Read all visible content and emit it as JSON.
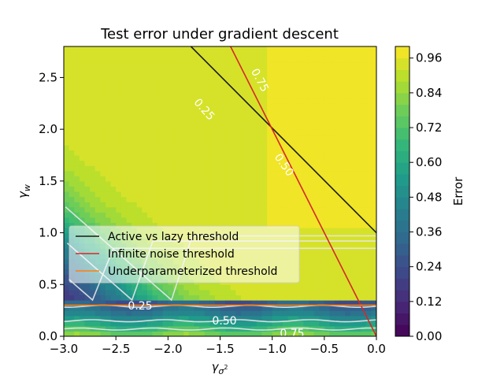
{
  "chart_data": {
    "type": "heatmap",
    "title": "Test error under gradient descent",
    "xlabel": "γ_{σ²}",
    "ylabel": "γ_w",
    "xlim": [
      -3.0,
      0.0
    ],
    "ylim": [
      0.0,
      2.8
    ],
    "x_ticks": [
      -3.0,
      -2.5,
      -2.0,
      -1.5,
      -1.0,
      -0.5,
      0.0
    ],
    "x_tick_labels": [
      "−3.0",
      "−2.5",
      "−2.0",
      "−1.5",
      "−1.0",
      "−0.5",
      "0.0"
    ],
    "y_ticks": [
      0.0,
      0.5,
      1.0,
      1.5,
      2.0,
      2.5
    ],
    "y_tick_labels": [
      "0.0",
      "0.5",
      "1.0",
      "1.5",
      "2.0",
      "2.5"
    ],
    "colorbar": {
      "label": "Error",
      "range": [
        0.0,
        1.0
      ],
      "ticks": [
        0.0,
        0.12,
        0.24,
        0.36,
        0.48,
        0.6,
        0.72,
        0.84,
        0.96
      ],
      "tick_labels": [
        "0.00",
        "0.12",
        "0.24",
        "0.36",
        "0.48",
        "0.60",
        "0.72",
        "0.84",
        "0.96"
      ],
      "colormap": "viridis",
      "levels": 25
    },
    "contour_levels": [
      0.25,
      0.5,
      0.75
    ],
    "contour_labels": [
      "0.25",
      "0.50",
      "0.75",
      "0.25",
      "0.50",
      "0.75"
    ],
    "lines": [
      {
        "name": "Active vs lazy threshold",
        "color": "#1a1a1a",
        "x": [
          -1.78,
          0.0
        ],
        "y": [
          2.8,
          1.0
        ]
      },
      {
        "name": "Infinite noise threshold",
        "color": "#d62728",
        "x": [
          -1.4,
          0.0
        ],
        "y": [
          2.8,
          0.0
        ]
      },
      {
        "name": "Underparameterized threshold",
        "color": "#ff7f0e",
        "x": [
          -3.0,
          0.0
        ],
        "y": [
          0.3,
          0.3
        ]
      }
    ],
    "legend": {
      "position": "center-left"
    }
  }
}
